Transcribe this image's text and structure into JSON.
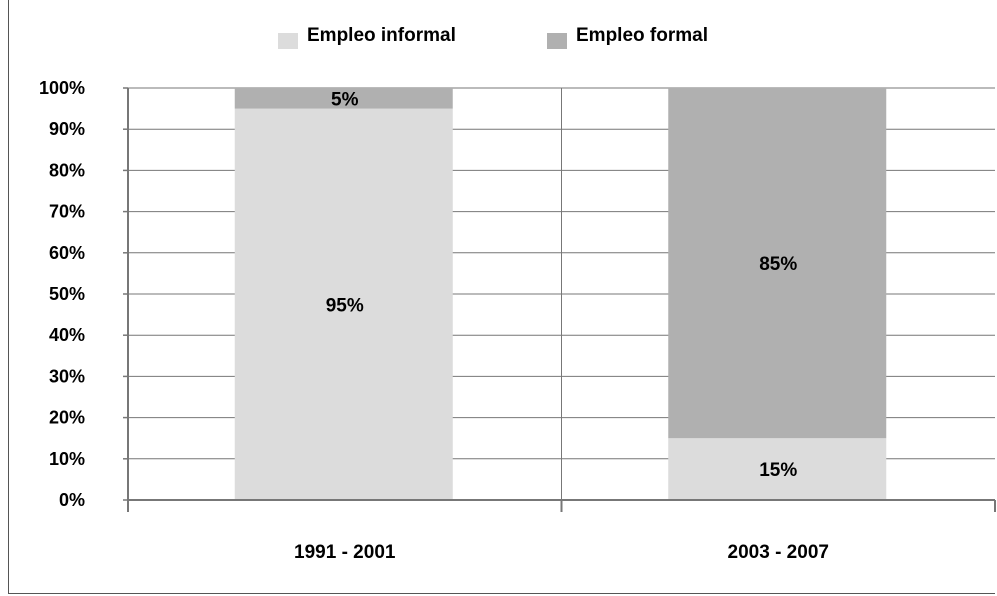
{
  "chart_data": {
    "type": "bar",
    "stacked": true,
    "categories": [
      "1991 - 2001",
      "2003 - 2007"
    ],
    "series": [
      {
        "name": "Empleo informal",
        "values": [
          95,
          15
        ],
        "labels": [
          "95%",
          "15%"
        ],
        "color": "#dcdcdc"
      },
      {
        "name": "Empleo formal",
        "values": [
          5,
          85
        ],
        "labels": [
          "5%",
          "85%"
        ],
        "color": "#b0b0b0"
      }
    ],
    "ylim": [
      0,
      100
    ],
    "yticks": [
      "0%",
      "10%",
      "20%",
      "30%",
      "40%",
      "50%",
      "60%",
      "70%",
      "80%",
      "90%",
      "100%"
    ],
    "grid": true,
    "legend_position": "top"
  }
}
